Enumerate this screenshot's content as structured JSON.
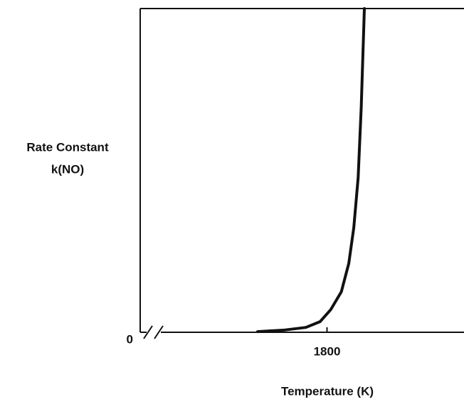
{
  "chart_data": {
    "type": "line",
    "y_label": [
      "Rate Constant",
      "k(NO)"
    ],
    "x_label": "Temperature (K)",
    "x": [
      1688.6,
      1732,
      1766,
      1789,
      1806,
      1823,
      1835,
      1843,
      1850,
      1855,
      1860
    ],
    "series": [
      {
        "color": "#111111",
        "values": [
          0.2,
          0.7,
          1.5,
          3.3,
          7.0,
          12.5,
          21.3,
          32.3,
          47.7,
          69.7,
          100
        ]
      }
    ],
    "xlim": [
      1500,
      2020
    ],
    "xticks": [
      1800
    ],
    "ylim": [
      0,
      100
    ],
    "yticks": [
      0
    ],
    "grid": false
  }
}
